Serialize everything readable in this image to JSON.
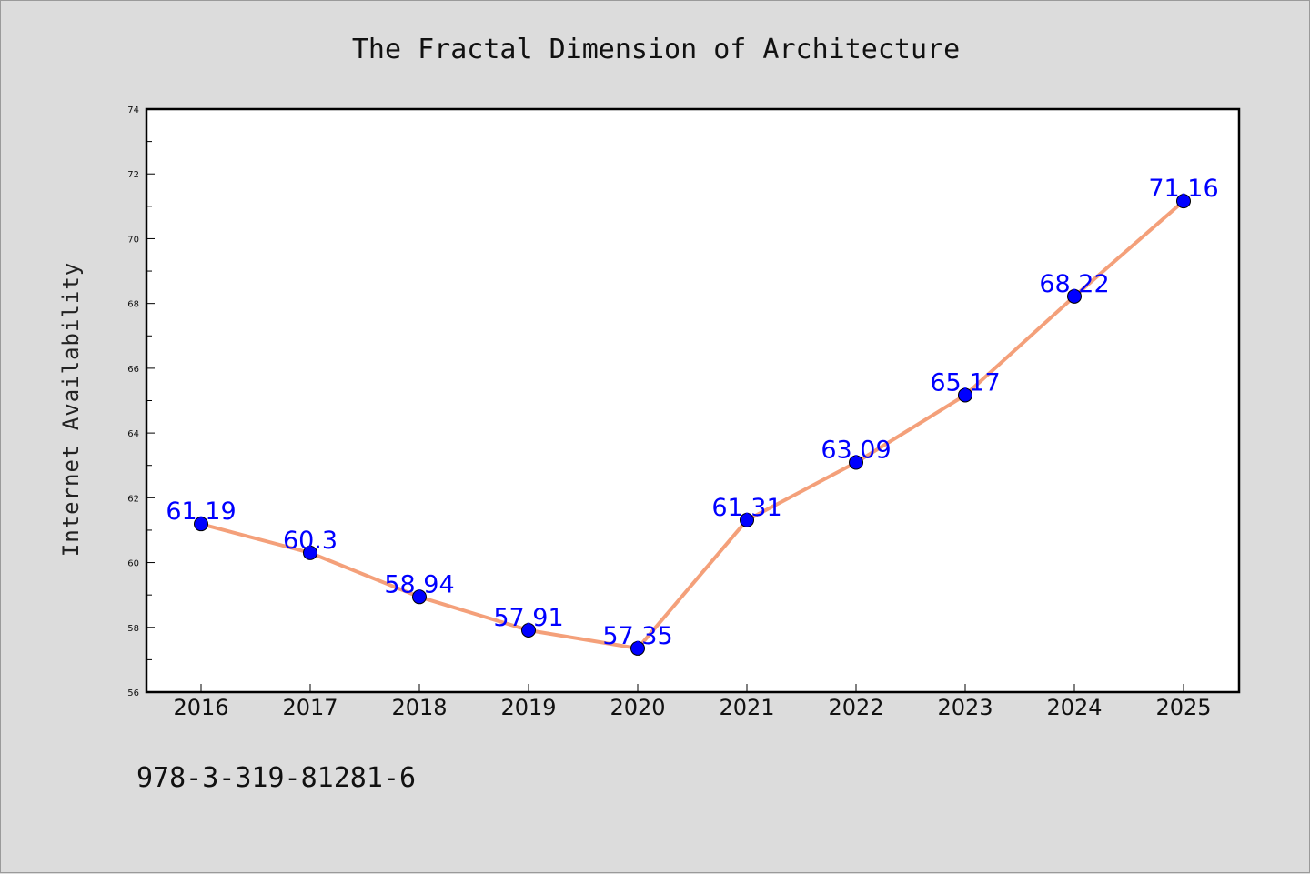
{
  "chart_data": {
    "type": "line",
    "title": "The Fractal Dimension of Architecture",
    "xlabel": "",
    "ylabel": "Internet Availability",
    "categories": [
      "2016",
      "2017",
      "2018",
      "2019",
      "2020",
      "2021",
      "2022",
      "2023",
      "2024",
      "2025"
    ],
    "series": [
      {
        "values": [
          61.19,
          60.3,
          58.94,
          57.91,
          57.35,
          61.31,
          63.09,
          65.17,
          68.22,
          71.16
        ],
        "labels": [
          "61.19",
          "60.3",
          "58.94",
          "57.91",
          "57.35",
          "61.31",
          "63.09",
          "65.17",
          "68.22",
          "71.16"
        ],
        "line_color": "#f4a07a",
        "marker_color": "#0000ff"
      }
    ],
    "ylim": [
      56,
      74
    ],
    "y_ticks": [
      "56",
      "58",
      "60",
      "62",
      "64",
      "66",
      "68",
      "70",
      "72",
      "74"
    ],
    "grid": false,
    "legend": "none"
  },
  "footer": {
    "isbn": "978-3-319-81281-6"
  },
  "colors": {
    "background": "#dcdcdc",
    "plot_background": "#ffffff"
  }
}
